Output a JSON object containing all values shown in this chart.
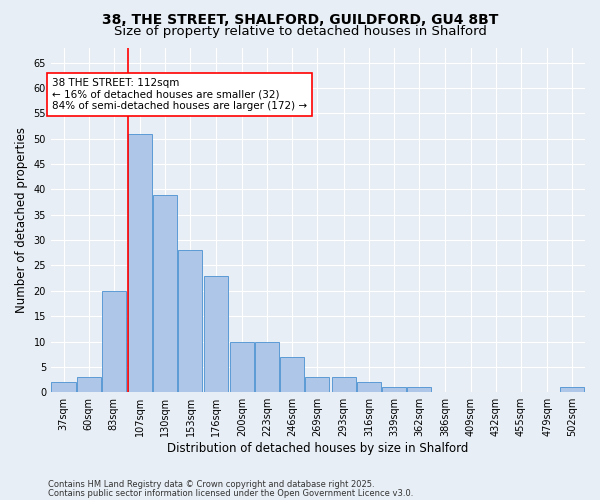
{
  "title1": "38, THE STREET, SHALFORD, GUILDFORD, GU4 8BT",
  "title2": "Size of property relative to detached houses in Shalford",
  "xlabel": "Distribution of detached houses by size in Shalford",
  "ylabel": "Number of detached properties",
  "footnote1": "Contains HM Land Registry data © Crown copyright and database right 2025.",
  "footnote2": "Contains public sector information licensed under the Open Government Licence v3.0.",
  "bins": [
    37,
    60,
    83,
    107,
    130,
    153,
    176,
    200,
    223,
    246,
    269,
    293,
    316,
    339,
    362,
    386,
    409,
    432,
    455,
    479,
    502
  ],
  "values": [
    2,
    3,
    20,
    51,
    39,
    28,
    23,
    10,
    10,
    7,
    3,
    3,
    2,
    1,
    1,
    0,
    0,
    0,
    0,
    0,
    1
  ],
  "bar_color": "#aec6e8",
  "bar_edge_color": "#5b9bd5",
  "red_line_bin_index": 3,
  "annotation_line1": "38 THE STREET: 112sqm",
  "annotation_line2": "← 16% of detached houses are smaller (32)",
  "annotation_line3": "84% of semi-detached houses are larger (172) →",
  "ylim_max": 68,
  "yticks": [
    0,
    5,
    10,
    15,
    20,
    25,
    30,
    35,
    40,
    45,
    50,
    55,
    60,
    65
  ],
  "bg_color": "#e8eef5",
  "plot_bg": "#e8eef5",
  "grid_color": "#ffffff",
  "title_fontsize": 10,
  "subtitle_fontsize": 9.5,
  "axis_label_fontsize": 8.5,
  "tick_fontsize": 7,
  "footnote_fontsize": 6,
  "annotation_fontsize": 7.5
}
